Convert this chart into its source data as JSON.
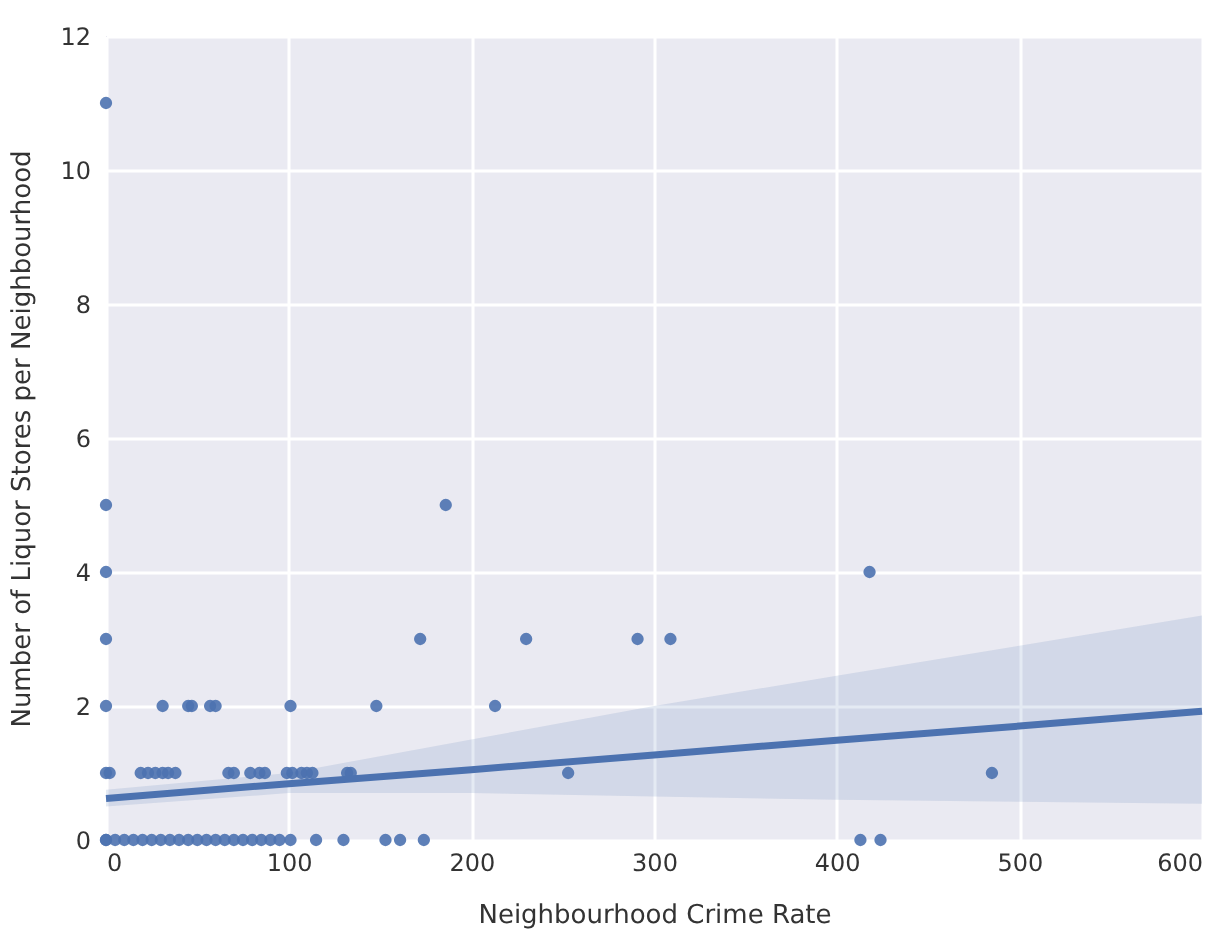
{
  "chart_data": {
    "type": "scatter",
    "xlabel": "Neighbourhood Crime Rate",
    "ylabel": "Number  of Liquor Stores per Neighbourhood",
    "xlim": [
      0,
      600
    ],
    "ylim": [
      0,
      12
    ],
    "xticks": [
      0,
      100,
      200,
      300,
      400,
      500,
      600
    ],
    "yticks": [
      0,
      2,
      4,
      6,
      8,
      10,
      12
    ],
    "grid": true,
    "series": [
      {
        "marker": "circle",
        "color": "#4c72b0",
        "x": [
          0,
          0,
          0,
          0,
          0,
          0,
          0,
          186,
          172,
          230,
          291,
          309,
          418,
          31,
          45,
          47,
          57,
          60,
          101,
          148,
          213,
          2,
          19,
          23,
          27,
          31,
          34,
          38,
          67,
          70,
          79,
          84,
          87,
          99,
          102,
          107,
          110,
          113,
          132,
          134,
          253,
          485,
          0,
          5,
          10,
          15,
          20,
          25,
          30,
          35,
          40,
          45,
          50,
          55,
          60,
          65,
          70,
          75,
          80,
          85,
          90,
          95,
          101,
          115,
          130,
          153,
          161,
          174,
          413,
          424
        ],
        "values": [
          11,
          5,
          4,
          3,
          2,
          1,
          0,
          5,
          3,
          3,
          3,
          3,
          4,
          2,
          2,
          2,
          2,
          2,
          2,
          2,
          2,
          1,
          1,
          1,
          1,
          1,
          1,
          1,
          1,
          1,
          1,
          1,
          1,
          1,
          1,
          1,
          1,
          1,
          1,
          1,
          1,
          1,
          0,
          0,
          0,
          0,
          0,
          0,
          0,
          0,
          0,
          0,
          0,
          0,
          0,
          0,
          0,
          0,
          0,
          0,
          0,
          0,
          0,
          0,
          0,
          0,
          0,
          0,
          0,
          0
        ]
      },
      {
        "type": "line",
        "color": "#4c72b0",
        "line_style": "solid",
        "x": [
          0,
          100,
          200,
          300,
          400,
          500,
          600
        ],
        "values": [
          0.62,
          0.84,
          1.05,
          1.27,
          1.49,
          1.7,
          1.92
        ],
        "lower": [
          0.5,
          0.7,
          0.7,
          0.65,
          0.6,
          0.57,
          0.54
        ],
        "upper": [
          0.75,
          1.0,
          1.5,
          2.0,
          2.45,
          2.9,
          3.35
        ]
      }
    ]
  }
}
